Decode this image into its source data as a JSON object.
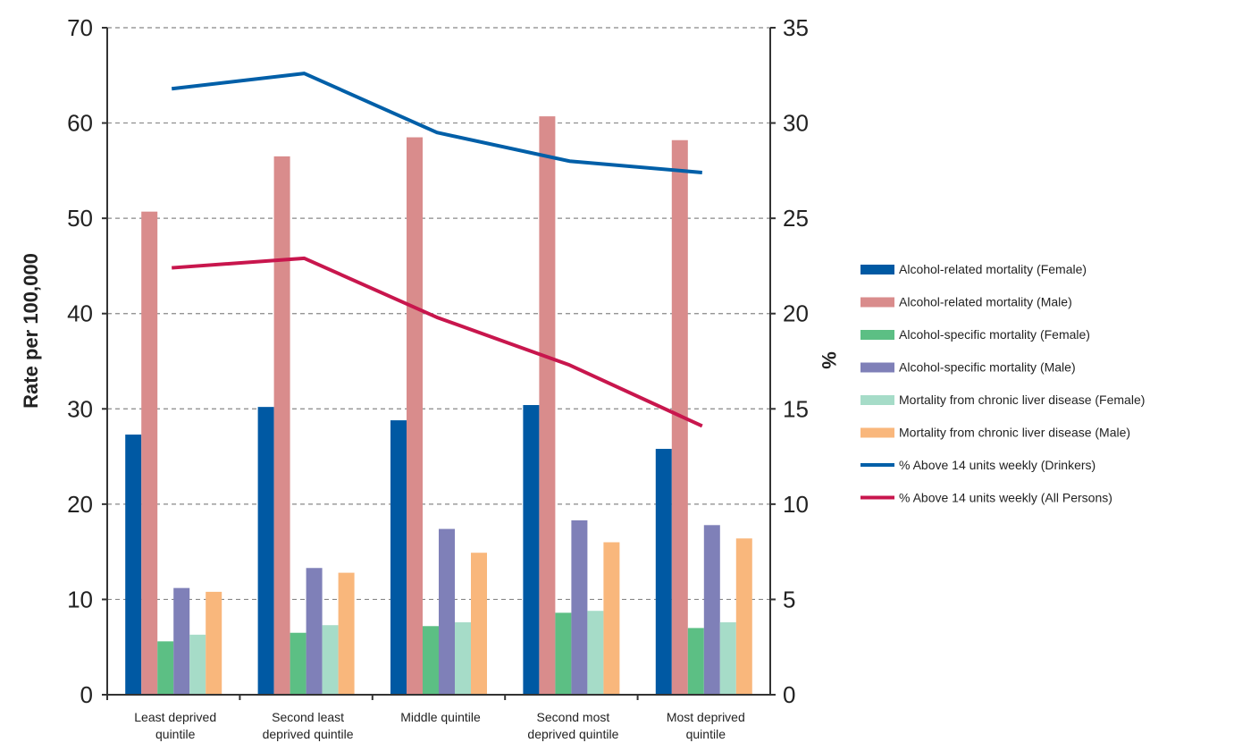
{
  "chart_data": {
    "type": "bar",
    "categories": [
      [
        "Least deprived",
        "quintile"
      ],
      [
        "Second least",
        "deprived quintile"
      ],
      [
        "Middle quintile"
      ],
      [
        "Second most",
        "deprived quintile"
      ],
      [
        "Most deprived",
        "quintile"
      ]
    ],
    "ylabel": "Rate per 100,000",
    "y2label": "%",
    "ylim": [
      0,
      70
    ],
    "y2lim": [
      0,
      35
    ],
    "yticks": [
      0,
      10,
      20,
      30,
      40,
      50,
      60,
      70
    ],
    "y2ticks": [
      0,
      5,
      10,
      15,
      20,
      25,
      30,
      35
    ],
    "grid": "horizontal dashed",
    "legend_position": "right",
    "bar_series": [
      {
        "name": "Alcohol-related mortality (Female)",
        "color": "#0059a3",
        "values": [
          27.3,
          30.2,
          28.8,
          30.4,
          25.8
        ]
      },
      {
        "name": "Alcohol-related mortality (Male)",
        "color": "#d98c8c",
        "values": [
          50.7,
          56.5,
          58.5,
          60.7,
          58.2
        ]
      },
      {
        "name": "Alcohol-specific mortality (Female)",
        "color": "#5cbf84",
        "values": [
          5.6,
          6.5,
          7.2,
          8.6,
          7.0
        ]
      },
      {
        "name": "Alcohol-specific mortality (Male)",
        "color": "#7f80b8",
        "values": [
          11.2,
          13.3,
          17.4,
          18.3,
          17.8
        ]
      },
      {
        "name": "Mortality from chronic liver disease (Female)",
        "color": "#a6dcc8",
        "values": [
          6.3,
          7.3,
          7.6,
          8.8,
          7.6
        ]
      },
      {
        "name": "Mortality from chronic liver disease (Male)",
        "color": "#f9b77c",
        "values": [
          10.8,
          12.8,
          14.9,
          16.0,
          16.4
        ]
      }
    ],
    "line_series": [
      {
        "name": "% Above 14 units weekly (Drinkers)",
        "color": "#005fa8",
        "axis": "right",
        "values": [
          31.8,
          32.6,
          29.5,
          28.0,
          27.4
        ]
      },
      {
        "name": "% Above 14 units weekly (All Persons)",
        "color": "#c8164d",
        "axis": "right",
        "values": [
          22.4,
          22.9,
          19.8,
          17.3,
          14.1
        ]
      }
    ]
  }
}
